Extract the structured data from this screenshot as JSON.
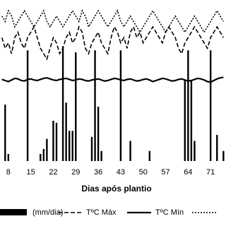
{
  "chart_data": {
    "type": "combo",
    "x_label": "Dias após plantio",
    "xlim": [
      5.4,
      75.8
    ],
    "xticks": [
      8,
      15,
      22,
      29,
      36,
      43,
      50,
      57,
      64,
      71
    ],
    "ylim": [
      0,
      80
    ],
    "y2lim": [
      10,
      40
    ],
    "bars": {
      "name": "(mm/dia)",
      "color": "#000000",
      "x": [
        7,
        8,
        14,
        18,
        19,
        20,
        22,
        23,
        25,
        26,
        27,
        28,
        29,
        34,
        35,
        36,
        37,
        43,
        46,
        52,
        63,
        64,
        65,
        66,
        71,
        73,
        75
      ],
      "values": [
        28,
        3.5,
        55,
        3.5,
        6,
        11,
        20,
        19,
        57,
        29,
        15,
        15,
        54,
        12,
        55,
        27,
        5,
        55,
        10,
        5,
        40,
        55,
        40,
        10,
        55,
        13,
        5
      ]
    },
    "x": [
      6,
      7,
      8,
      9,
      10,
      11,
      12,
      13,
      14,
      15,
      16,
      17,
      18,
      19,
      20,
      21,
      22,
      23,
      24,
      25,
      26,
      27,
      28,
      29,
      30,
      31,
      32,
      33,
      34,
      35,
      36,
      37,
      38,
      39,
      40,
      41,
      42,
      43,
      44,
      45,
      46,
      47,
      48,
      49,
      50,
      51,
      52,
      53,
      54,
      55,
      56,
      57,
      58,
      59,
      60,
      61,
      62,
      63,
      64,
      65,
      66,
      67,
      68,
      69,
      70,
      71,
      72,
      73,
      74,
      75
    ],
    "series": [
      {
        "name": "TºC Máx",
        "color": "#000000",
        "style": "dashed",
        "axis": "y2",
        "values": [
          33,
          31,
          32,
          30,
          33,
          34,
          32,
          31,
          33,
          34,
          35,
          33,
          31,
          30,
          29,
          31,
          33,
          32,
          30,
          31,
          33,
          34,
          32,
          33,
          35,
          34,
          31,
          30,
          32,
          33,
          34,
          32,
          31,
          30,
          33,
          35,
          34,
          32,
          33,
          31,
          34,
          35,
          33,
          34,
          32,
          33,
          34,
          35,
          34,
          33,
          32,
          34,
          35,
          34,
          33,
          31,
          30,
          32,
          33,
          34,
          35,
          34,
          33,
          32,
          31,
          33,
          34,
          35,
          34,
          33
        ]
      },
      {
        "name": "TºC Mín",
        "color": "#000000",
        "style": "solid",
        "axis": "y2",
        "values": [
          25.2,
          25.0,
          24.8,
          25.1,
          25.4,
          25.3,
          25.0,
          24.9,
          25.2,
          25.3,
          25.1,
          25.0,
          25.2,
          25.4,
          25.5,
          25.3,
          25.1,
          25.0,
          25.2,
          25.3,
          25.4,
          25.2,
          25.0,
          25.1,
          25.3,
          25.2,
          25.0,
          24.9,
          25.1,
          25.2,
          25.3,
          25.1,
          24.9,
          25.0,
          25.2,
          25.4,
          25.3,
          25.1,
          25.0,
          25.2,
          25.3,
          25.1,
          24.9,
          25.0,
          25.2,
          25.3,
          25.1,
          24.8,
          25.0,
          25.2,
          25.4,
          25.3,
          25.1,
          24.9,
          25.0,
          25.2,
          25.3,
          25.1,
          24.9,
          25.0,
          25.2,
          25.4,
          25.3,
          25.1,
          24.8,
          24.7,
          25.0,
          25.3,
          25.5,
          25.6
        ]
      },
      {
        "color": "#000000",
        "style": "dotted",
        "axis": "y2",
        "values": [
          37,
          36,
          38,
          37,
          35,
          36,
          37,
          38,
          37,
          36,
          35,
          36,
          37,
          38,
          36,
          35,
          36,
          37,
          36,
          35,
          36,
          37,
          38,
          37,
          36,
          38,
          37,
          35,
          36,
          37,
          38,
          37,
          36,
          35,
          36,
          37,
          38,
          36,
          35,
          36,
          37,
          36,
          35,
          34,
          35,
          36,
          37,
          38,
          37,
          36,
          35,
          34,
          35,
          36,
          37,
          36,
          35,
          34,
          35,
          36,
          37,
          36,
          35,
          34,
          35,
          36,
          37,
          38,
          37,
          36
        ]
      }
    ]
  }
}
